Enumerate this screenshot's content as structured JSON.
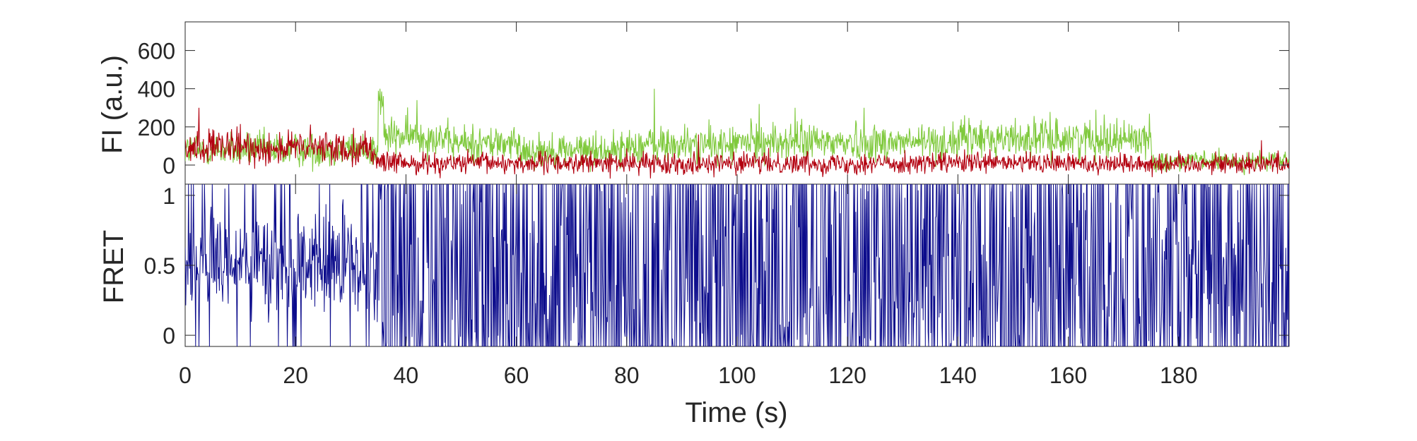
{
  "chart_data": [
    {
      "type": "line",
      "panel": "intensity",
      "ylabel": "FI (a.u.)",
      "xlim": [
        0,
        200
      ],
      "ylim": [
        -100,
        750
      ],
      "yticks": [
        "0",
        "200",
        "400",
        "600"
      ],
      "grid": false,
      "series": [
        {
          "color": "#7fc93c",
          "description_segments": [
            {
              "x": [
                0,
                35
              ],
              "mean": 80,
              "noise": 45
            },
            {
              "x": [
                35,
                36
              ],
              "mean": 320,
              "noise": 60
            },
            {
              "x": [
                36,
                47
              ],
              "mean": 150,
              "noise": 50
            },
            {
              "x": [
                47,
                60
              ],
              "mean": 115,
              "noise": 50
            },
            {
              "x": [
                60,
                80
              ],
              "mean": 80,
              "noise": 45
            },
            {
              "x": [
                80,
                100
              ],
              "mean": 105,
              "noise": 50
            },
            {
              "x": [
                100,
                140
              ],
              "mean": 120,
              "noise": 50
            },
            {
              "x": [
                140,
                175
              ],
              "mean": 140,
              "noise": 50
            },
            {
              "x": [
                175,
                200
              ],
              "mean": 20,
              "noise": 25
            }
          ],
          "peaks": [
            {
              "x": 35.3,
              "y": 400
            },
            {
              "x": 85.0,
              "y": 400
            },
            {
              "x": 42.0,
              "y": 340
            },
            {
              "x": 104.0,
              "y": 320
            },
            {
              "x": 110.5,
              "y": 300
            },
            {
              "x": 165.0,
              "y": 290
            },
            {
              "x": 123.0,
              "y": 300
            }
          ]
        },
        {
          "color": "#b3000f",
          "description_segments": [
            {
              "x": [
                0,
                34
              ],
              "mean": 90,
              "noise": 45
            },
            {
              "x": [
                34,
                36
              ],
              "mean": 30,
              "noise": 30
            },
            {
              "x": [
                36,
                200
              ],
              "mean": 10,
              "noise": 28
            }
          ],
          "peaks": [
            {
              "x": 2.5,
              "y": 300
            },
            {
              "x": 10.0,
              "y": 215
            },
            {
              "x": 93.0,
              "y": 160
            },
            {
              "x": 195.0,
              "y": 130
            }
          ]
        }
      ]
    },
    {
      "type": "line",
      "panel": "fret",
      "ylabel": "FRET",
      "xlabel": "Time (s)",
      "xlim": [
        0,
        200
      ],
      "xticks": [
        "0",
        "20",
        "40",
        "60",
        "80",
        "100",
        "120",
        "140",
        "180"
      ],
      "xticks_all": [
        "0",
        "20",
        "40",
        "60",
        "80",
        "100",
        "120",
        "140",
        "160",
        "180"
      ],
      "ylim": [
        -0.08,
        1.08
      ],
      "yticks": [
        "0",
        "0.5",
        "1"
      ],
      "grid": false,
      "series": [
        {
          "color": "#0c0c8c",
          "description_segments": [
            {
              "x": [
                0,
                35
              ],
              "mean": 0.5,
              "noise": 0.18,
              "clip_prob": 0.12
            },
            {
              "x": [
                35,
                175
              ],
              "mean": 0.4,
              "noise": 0.6,
              "clip_prob": 0.45
            },
            {
              "x": [
                175,
                200
              ],
              "mean": 0.55,
              "noise": 0.5,
              "clip_prob": 0.35
            }
          ]
        }
      ]
    }
  ],
  "labels": {
    "top_ylabel": "FI (a.u.)",
    "bottom_ylabel": "FRET",
    "xlabel": "Time (s)"
  }
}
